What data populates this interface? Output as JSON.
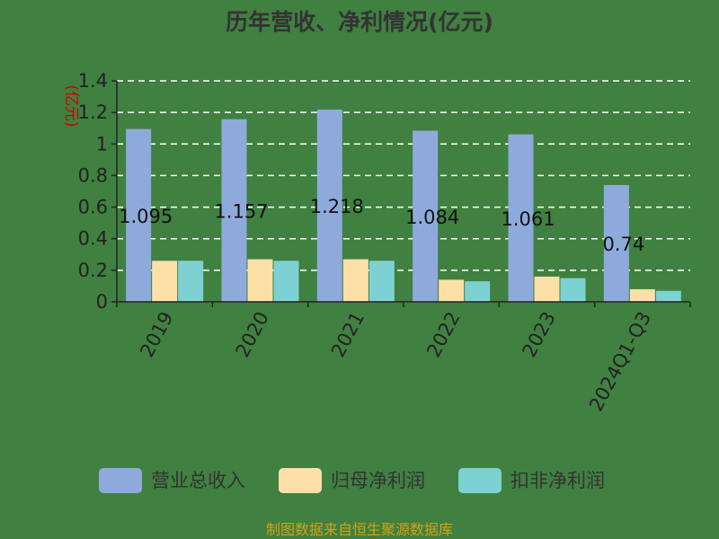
{
  "chart_data": {
    "type": "bar",
    "title": "历年营收、净利情况(亿元)",
    "ylabel": "(亿元)",
    "ylim": [
      0,
      1.4
    ],
    "yticks": [
      "0",
      "0.2",
      "0.4",
      "0.6",
      "0.8",
      "1",
      "1.2",
      "1.4"
    ],
    "categories": [
      "2019",
      "2020",
      "2021",
      "2022",
      "2023",
      "2024Q1-Q3"
    ],
    "series": [
      {
        "name": "营业总收入",
        "color": "#8eaadb",
        "values": [
          1.095,
          1.157,
          1.218,
          1.084,
          1.061,
          0.74
        ],
        "labels": [
          "1.095",
          "1.157",
          "1.218",
          "1.084",
          "1.061",
          "0.74"
        ]
      },
      {
        "name": "归母净利润",
        "color": "#fde0a8",
        "values": [
          0.26,
          0.27,
          0.27,
          0.14,
          0.16,
          0.08
        ]
      },
      {
        "name": "扣非净利润",
        "color": "#7dd1d3",
        "values": [
          0.26,
          0.26,
          0.26,
          0.13,
          0.15,
          0.07
        ]
      }
    ],
    "grid": true,
    "legend_position": "bottom"
  },
  "footer": {
    "source": "制图数据来自恒生聚源数据库"
  }
}
